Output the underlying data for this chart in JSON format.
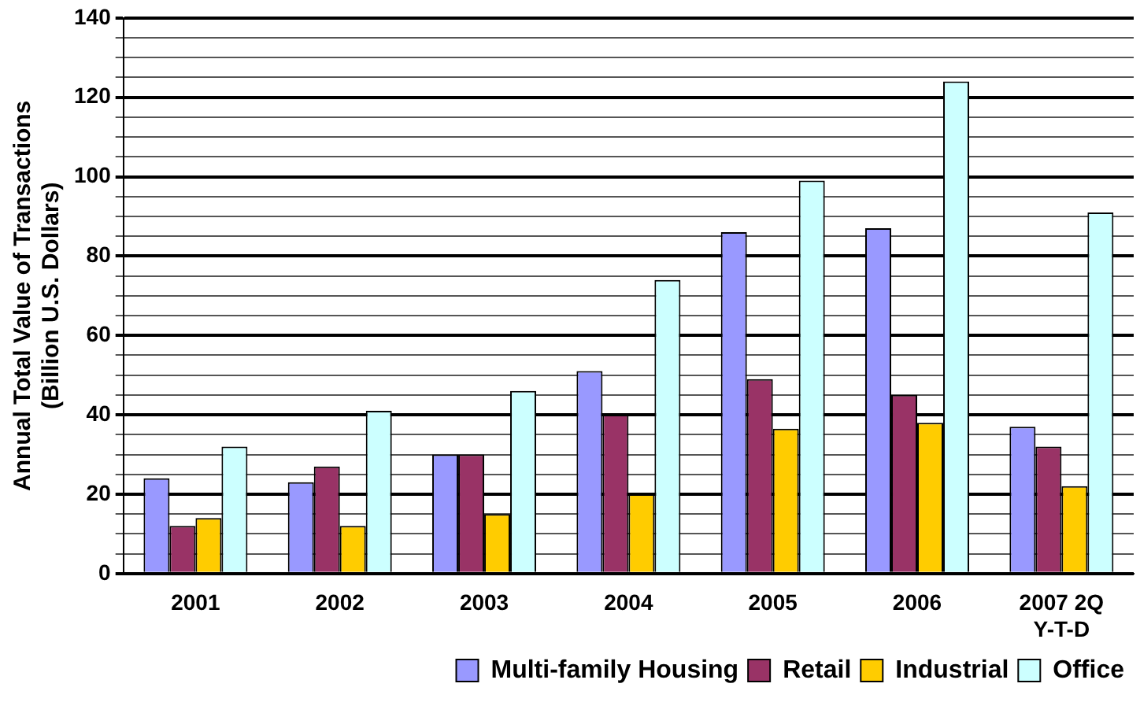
{
  "chart_data": {
    "type": "bar",
    "ylabel": "Annual Total Value of Transactions (Billion U.S. Dollars)",
    "categories": [
      "2001",
      "2002",
      "2003",
      "2004",
      "2005",
      "2006",
      "2007 2Q Y-T-D"
    ],
    "series": [
      {
        "name": "Multi-family Housing",
        "color": "#9999ff",
        "values": [
          24,
          23,
          30,
          51,
          86,
          87,
          37
        ]
      },
      {
        "name": "Retail",
        "color": "#993366",
        "values": [
          12,
          27,
          30,
          40,
          49,
          45,
          32
        ]
      },
      {
        "name": "Industrial",
        "color": "#ffcc00",
        "values": [
          14,
          12,
          15,
          20,
          36.5,
          38,
          22
        ]
      },
      {
        "name": "Office",
        "color": "#ccffff",
        "values": [
          32,
          41,
          46,
          74,
          99,
          124,
          91
        ]
      }
    ],
    "ylim": [
      0,
      140
    ],
    "yticks": [
      0,
      {
        "value": 5,
        "label": null
      },
      {
        "value": 10,
        "label": null
      },
      {
        "value": 15,
        "label": null
      },
      20,
      {
        "value": 25,
        "label": null
      },
      {
        "value": 30,
        "label": null
      },
      {
        "value": 35,
        "label": null
      },
      40,
      {
        "value": 45,
        "label": null
      },
      {
        "value": 50,
        "label": null
      },
      {
        "value": 55,
        "label": null
      },
      60,
      {
        "value": 65,
        "label": null
      },
      {
        "value": 70,
        "label": null
      },
      {
        "value": 75,
        "label": null
      },
      80,
      {
        "value": 85,
        "label": null
      },
      {
        "value": 90,
        "label": null
      },
      {
        "value": 95,
        "label": null
      },
      100,
      {
        "value": 105,
        "label": null
      },
      {
        "value": 110,
        "label": null
      },
      {
        "value": 115,
        "label": null
      },
      120,
      {
        "value": 125,
        "label": null
      },
      {
        "value": 130,
        "label": null
      },
      {
        "value": 135,
        "label": null
      },
      140
    ],
    "grid": "y",
    "legend": "bottom"
  }
}
